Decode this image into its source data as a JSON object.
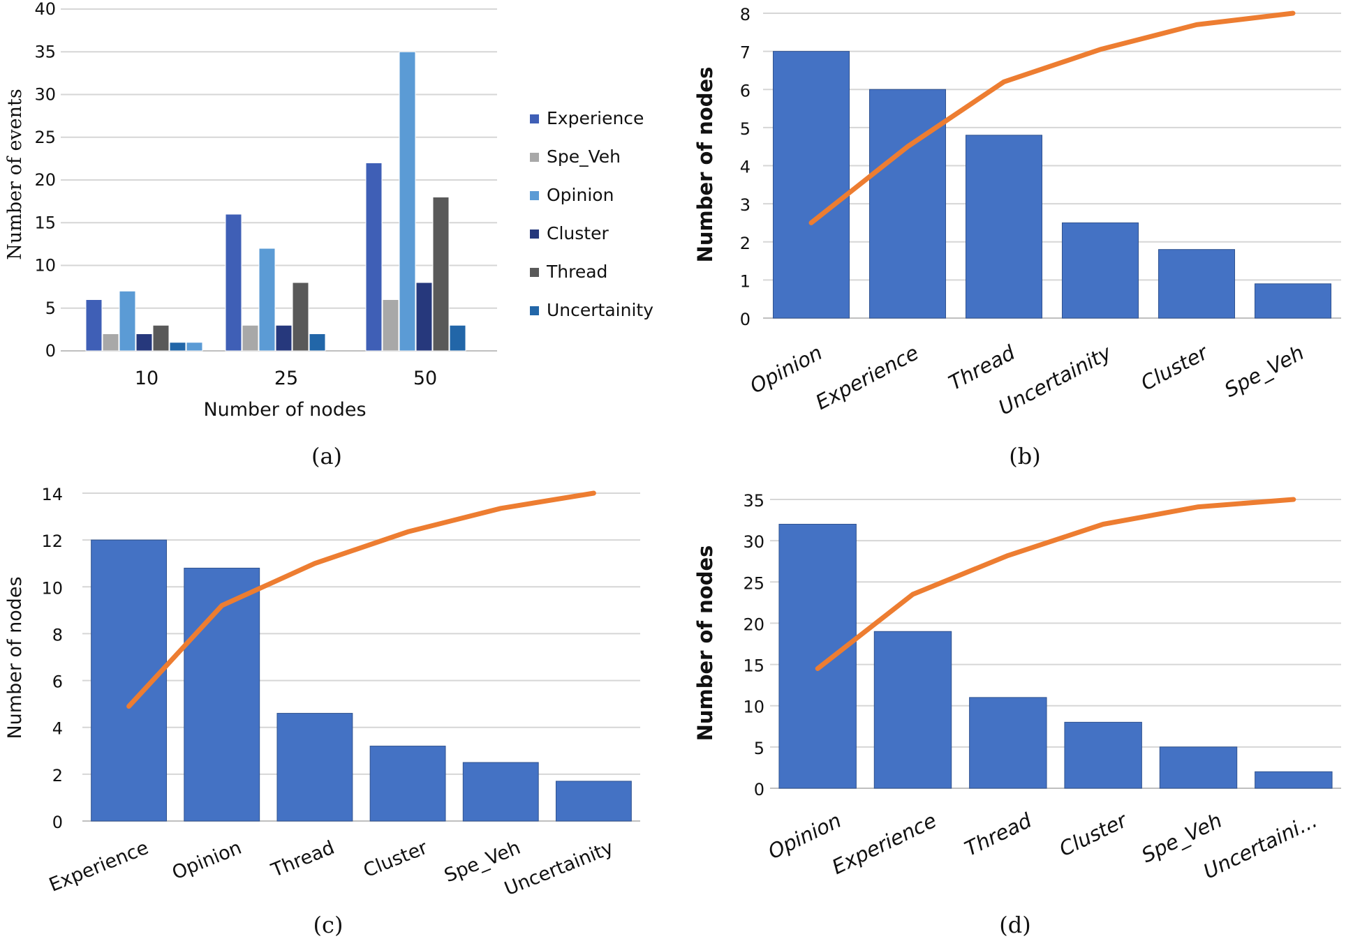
{
  "chart_data": [
    {
      "id": "a",
      "type": "bar",
      "caption": "(a)",
      "categories": [
        "10",
        "25",
        "50"
      ],
      "series": [
        {
          "name": "Experience",
          "values": [
            6,
            16,
            22
          ],
          "color": "#3f5fb6"
        },
        {
          "name": "Spe_Veh",
          "values": [
            2,
            3,
            6
          ],
          "color": "#a8a8a8"
        },
        {
          "name": "Opinion",
          "values": [
            7,
            12,
            35
          ],
          "color": "#5b9bd5"
        },
        {
          "name": "Cluster",
          "values": [
            2,
            3,
            8
          ],
          "color": "#26387c"
        },
        {
          "name": "Thread",
          "values": [
            3,
            8,
            18
          ],
          "color": "#595959"
        },
        {
          "name": "Uncertainity",
          "values": [
            1,
            2,
            3
          ],
          "color": "#2266a8"
        }
      ],
      "extra_bar": {
        "category_index": 0,
        "value": 1,
        "color": "#5b9bd5"
      },
      "xlabel": "Number of nodes",
      "ylabel": "Number of events",
      "ylim": [
        0,
        40
      ],
      "yticks": [
        "0",
        "5",
        "10",
        "15",
        "20",
        "25",
        "30",
        "35",
        "40"
      ],
      "legend": "right"
    },
    {
      "id": "b",
      "type": "bar",
      "caption": "(b)",
      "categories": [
        "Opinion",
        "Experience",
        "Thread",
        "Uncertainity",
        "Cluster",
        "Spe_Veh"
      ],
      "values": [
        7,
        6,
        4.8,
        2.5,
        1.8,
        0.9
      ],
      "line": [
        2.5,
        4.5,
        6.2,
        7.05,
        7.7,
        8.0
      ],
      "bar_color": "#4472c4",
      "line_color": "#ed7d31",
      "ylabel": "Number of nodes",
      "ylim": [
        0,
        8
      ],
      "yticks": [
        "0",
        "1",
        "2",
        "3",
        "4",
        "5",
        "6",
        "7",
        "8"
      ]
    },
    {
      "id": "c",
      "type": "bar",
      "caption": "(c)",
      "categories": [
        "Experience",
        "Opinion",
        "Thread",
        "Cluster",
        "Spe_Veh",
        "Uncertainity"
      ],
      "values": [
        12,
        10.8,
        4.6,
        3.2,
        2.5,
        1.7
      ],
      "line": [
        4.9,
        9.2,
        11.0,
        12.35,
        13.35,
        14.0
      ],
      "bar_color": "#4472c4",
      "line_color": "#ed7d31",
      "ylabel": "Number of nodes",
      "ylim": [
        0,
        14
      ],
      "yticks": [
        "0",
        "2",
        "4",
        "6",
        "8",
        "10",
        "12",
        "14"
      ]
    },
    {
      "id": "d",
      "type": "bar",
      "caption": "(d)",
      "categories": [
        "Opinion",
        "Experience",
        "Thread",
        "Cluster",
        "Spe_Veh",
        "Uncertaini..."
      ],
      "values": [
        32,
        19,
        11,
        8,
        5,
        2
      ],
      "line": [
        14.5,
        23.5,
        28.2,
        32.0,
        34.1,
        35.0
      ],
      "bar_color": "#4472c4",
      "line_color": "#ed7d31",
      "ylabel": "Number of nodes",
      "ylim": [
        0,
        35
      ],
      "yticks": [
        "0",
        "5",
        "10",
        "15",
        "20",
        "25",
        "30",
        "35"
      ]
    }
  ]
}
